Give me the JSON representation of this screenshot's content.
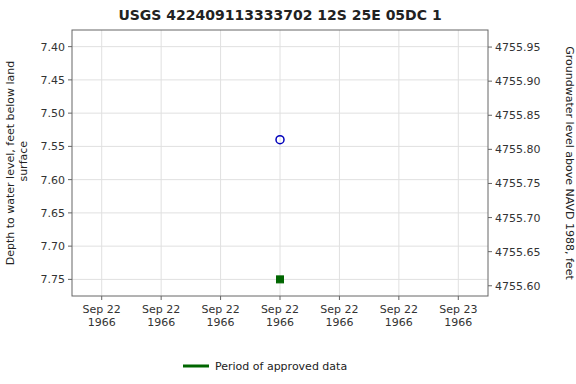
{
  "chart_data": {
    "type": "scatter",
    "title": "USGS 422409113333702 12S 25E 05DC 1",
    "ylabel": "Depth to water level, feet below land\n surface",
    "y2label": "Groundwater level above NAVD 1988, feet",
    "categories": [
      "Sep 22\n1966",
      "Sep 22\n1966",
      "Sep 22\n1966",
      "Sep 22\n1966",
      "Sep 22\n1966",
      "Sep 22\n1966",
      "Sep 23\n1966"
    ],
    "series": [
      {
        "color": "#0000bb",
        "marker": "open-circle",
        "values": [
          null,
          null,
          null,
          7.54,
          null,
          null,
          null
        ]
      },
      {
        "name": "Period of approved data",
        "color": "#006600",
        "marker": "square",
        "values": [
          null,
          null,
          null,
          7.75,
          null,
          null,
          null
        ]
      }
    ],
    "ylim": [
      7.775,
      7.375
    ],
    "yticks": [
      {
        "value": 7.4,
        "label": "7.40"
      },
      7.45,
      {
        "value": 7.5,
        "label": "7.50"
      },
      7.55,
      {
        "value": 7.6,
        "label": "7.60"
      },
      7.65,
      {
        "value": 7.7,
        "label": "7.70"
      },
      7.75
    ],
    "y2lim": [
      4755.585,
      4755.975
    ],
    "y2ticks": [
      {
        "value": 4755.6,
        "label": "4755.60"
      },
      4755.65,
      {
        "value": 4755.7,
        "label": "4755.70"
      },
      4755.75,
      {
        "value": 4755.8,
        "label": "4755.80"
      },
      4755.85,
      {
        "value": 4755.9,
        "label": "4755.90"
      },
      4755.95
    ],
    "grid": true,
    "legend": "bottom"
  }
}
